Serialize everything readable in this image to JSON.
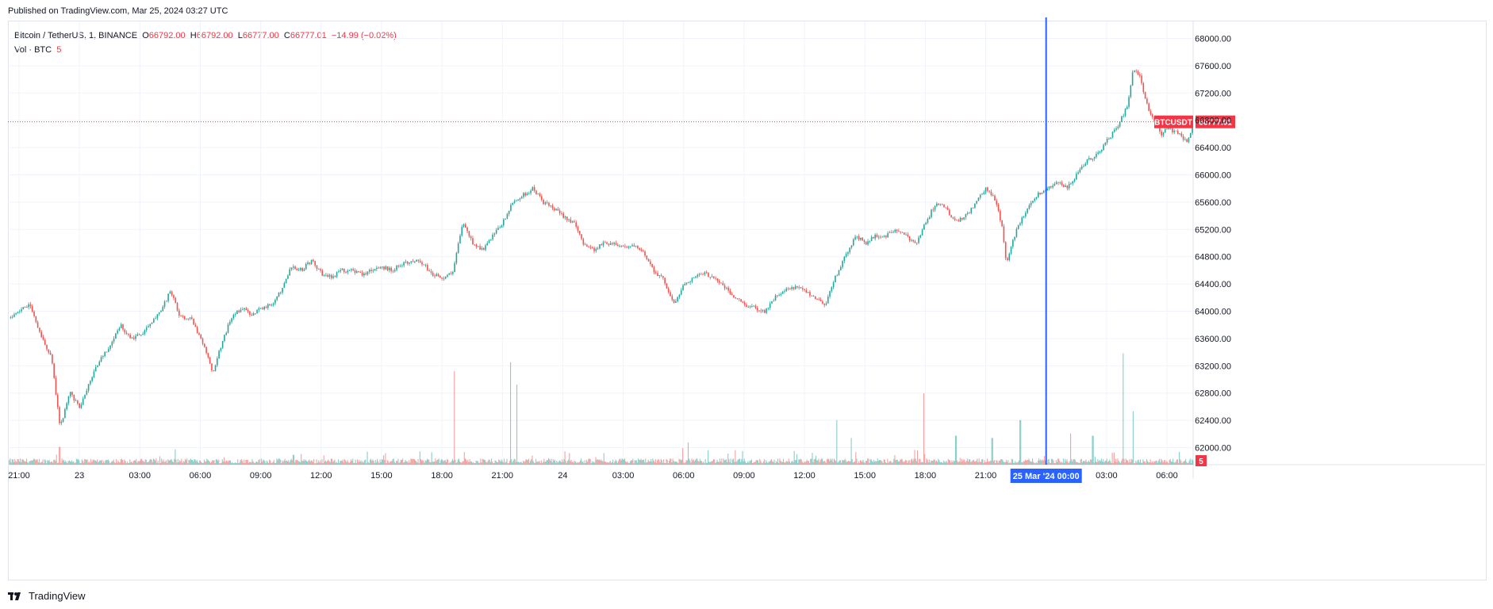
{
  "published": "Published on TradingView.com, Mar 25, 2024 03:27 UTC",
  "legend": {
    "symbol": "Bitcoin / TetherUS, 1, BINANCE",
    "o_label": "O",
    "o": "66792.00",
    "h_label": "H",
    "h": "66792.00",
    "l_label": "L",
    "l": "66777.00",
    "c_label": "C",
    "c": "66777.01",
    "change": "−14.99 (−0.02%)",
    "vol_label": "Vol · BTC",
    "vol_value": "5"
  },
  "price_badge": {
    "symbol": "BTCUSDT",
    "value": "66777.01"
  },
  "vol_badge": "5",
  "crosshair_time": "25 Mar '24   00:00",
  "footer": "TradingView",
  "colors": {
    "up": "#26a69a",
    "down": "#ef5350",
    "crosshair": "#2962ff",
    "grid": "#f0f3fa",
    "axis_text": "#131722"
  },
  "chart_data": {
    "type": "candlestick",
    "interval": "1",
    "y_ticks": [
      62000,
      62400,
      62800,
      63200,
      63600,
      64000,
      64400,
      64800,
      65200,
      65600,
      66000,
      66400,
      66800,
      67200,
      67600,
      68000
    ],
    "y_tick_labels": [
      "62000.00",
      "62400.00",
      "62800.00",
      "63200.00",
      "63600.00",
      "64000.00",
      "64400.00",
      "64800.00",
      "65200.00",
      "65600.00",
      "66000.00",
      "66400.00",
      "66800.00",
      "67200.00",
      "67600.00",
      "68000.00"
    ],
    "ylim": [
      61750,
      68250
    ],
    "x_ticks": [
      "21:00",
      "23",
      "03:00",
      "06:00",
      "09:00",
      "12:00",
      "15:00",
      "18:00",
      "21:00",
      "24",
      "03:00",
      "06:00",
      "09:00",
      "12:00",
      "15:00",
      "18:00",
      "21:00",
      "00:00",
      "03:00",
      "06:00"
    ],
    "x_tick_hours": [
      0,
      3,
      6,
      9,
      12,
      15,
      18,
      21,
      24,
      27,
      30,
      33,
      36,
      39,
      42,
      45,
      48,
      51,
      54,
      57
    ],
    "x_start_label": "2024-03-22 20:00",
    "xlim_hours": [
      -0.55,
      58.3
    ],
    "crosshair_hour": 51,
    "last_price": 66777.01,
    "price_path": [
      [
        -0.5,
        63900
      ],
      [
        0.5,
        64100
      ],
      [
        1.0,
        63700
      ],
      [
        1.6,
        63300
      ],
      [
        2.0,
        62300
      ],
      [
        2.5,
        62800
      ],
      [
        3.0,
        62600
      ],
      [
        3.5,
        63000
      ],
      [
        4.0,
        63300
      ],
      [
        4.5,
        63500
      ],
      [
        5.0,
        63800
      ],
      [
        5.5,
        63600
      ],
      [
        6.0,
        63650
      ],
      [
        6.5,
        63800
      ],
      [
        7.0,
        64000
      ],
      [
        7.5,
        64300
      ],
      [
        8.0,
        63900
      ],
      [
        8.5,
        63900
      ],
      [
        9.0,
        63600
      ],
      [
        9.6,
        63100
      ],
      [
        10.0,
        63500
      ],
      [
        10.5,
        63900
      ],
      [
        11.0,
        64050
      ],
      [
        11.5,
        63950
      ],
      [
        12.0,
        64050
      ],
      [
        12.5,
        64100
      ],
      [
        13.0,
        64300
      ],
      [
        13.5,
        64650
      ],
      [
        14.0,
        64600
      ],
      [
        14.5,
        64750
      ],
      [
        15.0,
        64550
      ],
      [
        15.5,
        64500
      ],
      [
        16.0,
        64600
      ],
      [
        16.5,
        64600
      ],
      [
        17.0,
        64550
      ],
      [
        17.5,
        64600
      ],
      [
        18.0,
        64650
      ],
      [
        18.5,
        64600
      ],
      [
        19.0,
        64700
      ],
      [
        19.5,
        64750
      ],
      [
        20.0,
        64700
      ],
      [
        20.5,
        64550
      ],
      [
        21.0,
        64500
      ],
      [
        21.5,
        64550
      ],
      [
        22.0,
        65300
      ],
      [
        22.5,
        65000
      ],
      [
        23.0,
        64900
      ],
      [
        23.5,
        65100
      ],
      [
        24.0,
        65300
      ],
      [
        24.5,
        65600
      ],
      [
        25.0,
        65700
      ],
      [
        25.5,
        65800
      ],
      [
        26.0,
        65600
      ],
      [
        26.5,
        65500
      ],
      [
        27.0,
        65400
      ],
      [
        27.5,
        65300
      ],
      [
        28.0,
        65000
      ],
      [
        28.5,
        64900
      ],
      [
        29.0,
        65000
      ],
      [
        29.5,
        65000
      ],
      [
        30.0,
        64950
      ],
      [
        30.5,
        64950
      ],
      [
        31.0,
        64850
      ],
      [
        31.5,
        64600
      ],
      [
        32.0,
        64450
      ],
      [
        32.5,
        64100
      ],
      [
        33.0,
        64400
      ],
      [
        33.5,
        64500
      ],
      [
        34.0,
        64550
      ],
      [
        34.5,
        64500
      ],
      [
        35.0,
        64350
      ],
      [
        35.5,
        64200
      ],
      [
        36.0,
        64100
      ],
      [
        36.5,
        64050
      ],
      [
        37.0,
        64000
      ],
      [
        37.5,
        64200
      ],
      [
        38.0,
        64300
      ],
      [
        38.5,
        64350
      ],
      [
        39.0,
        64300
      ],
      [
        39.5,
        64200
      ],
      [
        40.0,
        64100
      ],
      [
        40.5,
        64500
      ],
      [
        41.0,
        64800
      ],
      [
        41.5,
        65100
      ],
      [
        42.0,
        65000
      ],
      [
        42.5,
        65100
      ],
      [
        43.0,
        65100
      ],
      [
        43.5,
        65200
      ],
      [
        44.0,
        65100
      ],
      [
        44.5,
        65000
      ],
      [
        45.0,
        65300
      ],
      [
        45.5,
        65600
      ],
      [
        46.0,
        65500
      ],
      [
        46.5,
        65300
      ],
      [
        47.0,
        65400
      ],
      [
        47.5,
        65600
      ],
      [
        48.0,
        65800
      ],
      [
        48.5,
        65600
      ],
      [
        48.8,
        65200
      ],
      [
        49.0,
        64700
      ],
      [
        49.5,
        65200
      ],
      [
        50.0,
        65500
      ],
      [
        50.5,
        65700
      ],
      [
        51.0,
        65800
      ],
      [
        51.5,
        65900
      ],
      [
        52.0,
        65800
      ],
      [
        52.5,
        66000
      ],
      [
        53.0,
        66200
      ],
      [
        53.5,
        66300
      ],
      [
        54.0,
        66500
      ],
      [
        54.5,
        66700
      ],
      [
        55.0,
        67000
      ],
      [
        55.3,
        67550
      ],
      [
        55.6,
        67450
      ],
      [
        56.0,
        67000
      ],
      [
        56.3,
        66800
      ],
      [
        56.7,
        66600
      ],
      [
        57.0,
        66700
      ],
      [
        57.5,
        66600
      ],
      [
        58.0,
        66500
      ],
      [
        58.3,
        66777
      ]
    ],
    "volume_spikes": [
      [
        2.0,
        400
      ],
      [
        8.7,
        120
      ],
      [
        13.6,
        220
      ],
      [
        21.6,
        2100
      ],
      [
        24.4,
        2300
      ],
      [
        24.7,
        1800
      ],
      [
        27.1,
        300
      ],
      [
        33.2,
        500
      ],
      [
        35.2,
        250
      ],
      [
        40.6,
        1000
      ],
      [
        41.3,
        600
      ],
      [
        44.9,
        1600
      ],
      [
        46.5,
        650
      ],
      [
        48.3,
        600
      ],
      [
        49.7,
        1000
      ],
      [
        52.2,
        700
      ],
      [
        53.3,
        650
      ],
      [
        54.8,
        2500
      ],
      [
        55.3,
        1200
      ]
    ],
    "volume_scale_max": 2600
  }
}
